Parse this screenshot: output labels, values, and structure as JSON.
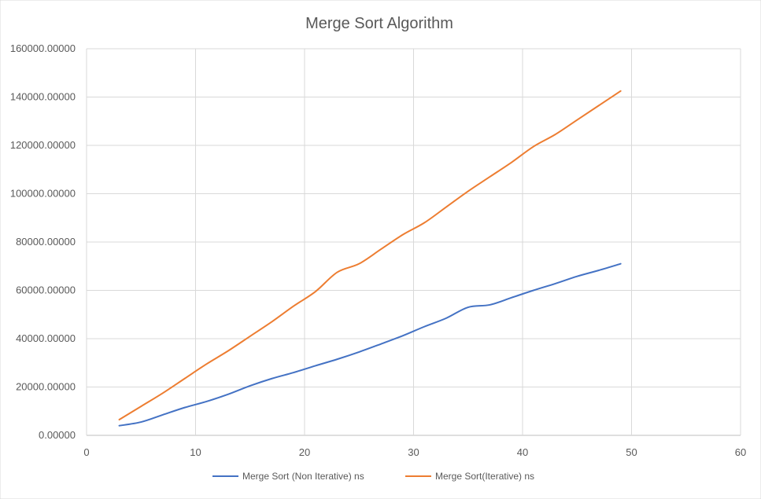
{
  "chart_data": {
    "type": "line",
    "title": "Merge Sort Algorithm",
    "xlabel": "",
    "ylabel": "",
    "xlim": [
      0,
      60
    ],
    "ylim": [
      0,
      160000
    ],
    "x_ticks": [
      "0",
      "10",
      "20",
      "30",
      "40",
      "50",
      "60"
    ],
    "y_ticks": [
      "0.00000",
      "20000.00000",
      "40000.00000",
      "60000.00000",
      "80000.00000",
      "100000.00000",
      "120000.00000",
      "140000.00000",
      "160000.00000"
    ],
    "grid": true,
    "legend_position": "bottom",
    "series": [
      {
        "name": "Merge Sort (Non Iterative) ns",
        "color": "#4472c4",
        "x": [
          3,
          5,
          7,
          9,
          11,
          13,
          15,
          17,
          19,
          21,
          23,
          25,
          27,
          29,
          31,
          33,
          35,
          37,
          39,
          41,
          43,
          45,
          47,
          49
        ],
        "y": [
          4000,
          5500,
          8500,
          11500,
          14000,
          17000,
          20500,
          23500,
          26000,
          28800,
          31500,
          34500,
          37800,
          41200,
          45000,
          48500,
          53000,
          54000,
          57000,
          60000,
          62800,
          65800,
          68300,
          71000
        ]
      },
      {
        "name": "Merge Sort(Iterative) ns",
        "color": "#ed7d31",
        "x": [
          3,
          5,
          7,
          9,
          11,
          13,
          15,
          17,
          19,
          21,
          23,
          25,
          27,
          29,
          31,
          33,
          35,
          37,
          39,
          41,
          43,
          45,
          47,
          49
        ],
        "y": [
          6500,
          12000,
          17500,
          23500,
          29500,
          35000,
          41000,
          47000,
          53500,
          59500,
          67500,
          71000,
          77000,
          83000,
          88000,
          94500,
          101000,
          107000,
          113000,
          119500,
          124500,
          130500,
          136500,
          142500
        ]
      }
    ]
  }
}
